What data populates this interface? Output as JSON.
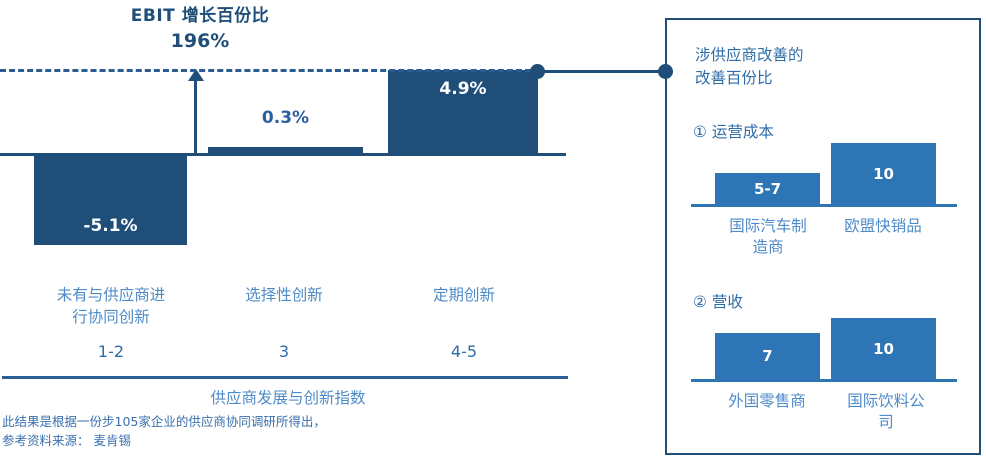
{
  "colors": {
    "bar_dark_navy": "#1F4E79",
    "bar_medium_blue": "#2E75B6",
    "label_light_blue": "#4E8BC8",
    "text_medium_blue": "#2E6DA8"
  },
  "main_chart": {
    "title": "EBIT 增长百份比",
    "annotation": "196%",
    "bars": [
      {
        "value": "-5.1%",
        "category": "未有与供应商进行协同创新",
        "index": "1-2"
      },
      {
        "value": "0.3%",
        "category": "选择性创新",
        "index": "3"
      },
      {
        "value": "4.9%",
        "category": "定期创新",
        "index": "4-5"
      }
    ],
    "axis_title": "供应商发展与创新指数"
  },
  "side_panel": {
    "title": "涉供应商改善的改善百份比",
    "sections": [
      {
        "heading": "① 运营成本",
        "bars": [
          {
            "value": "5-7",
            "category": "国际汽车制造商"
          },
          {
            "value": "10",
            "category": "欧盟快销品"
          }
        ]
      },
      {
        "heading": "② 营收",
        "bars": [
          {
            "value": "7",
            "category": "外国零售商"
          },
          {
            "value": "10",
            "category": "国际饮料公司"
          }
        ]
      }
    ]
  },
  "footnote": {
    "line1": "此结果是根据一份步105家企业的供应商协同调研所得出，",
    "line2": "参考资料来源： 麦肯锡"
  },
  "chart_data": [
    {
      "type": "bar",
      "title": "EBIT 增长百份比",
      "reference_label": "196%",
      "categories": [
        "未有与供应商进行协同创新",
        "选择性创新",
        "定期创新"
      ],
      "category_index_labels": [
        "1-2",
        "3",
        "4-5"
      ],
      "values": [
        -5.1,
        0.3,
        4.9
      ],
      "value_labels": [
        "-5.1%",
        "0.3%",
        "4.9%"
      ],
      "xlabel": "供应商发展与创新指数",
      "ylabel": "",
      "grid": false,
      "legend": false
    },
    {
      "type": "bar",
      "title": "① 运营成本",
      "categories": [
        "国际汽车制造商",
        "欧盟快销品"
      ],
      "values": [
        6,
        10
      ],
      "value_labels": [
        "5-7",
        "10"
      ],
      "grid": false,
      "legend": false
    },
    {
      "type": "bar",
      "title": "② 营收",
      "categories": [
        "外国零售商",
        "国际饮料公司"
      ],
      "values": [
        7,
        10
      ],
      "value_labels": [
        "7",
        "10"
      ],
      "grid": false,
      "legend": false
    }
  ]
}
